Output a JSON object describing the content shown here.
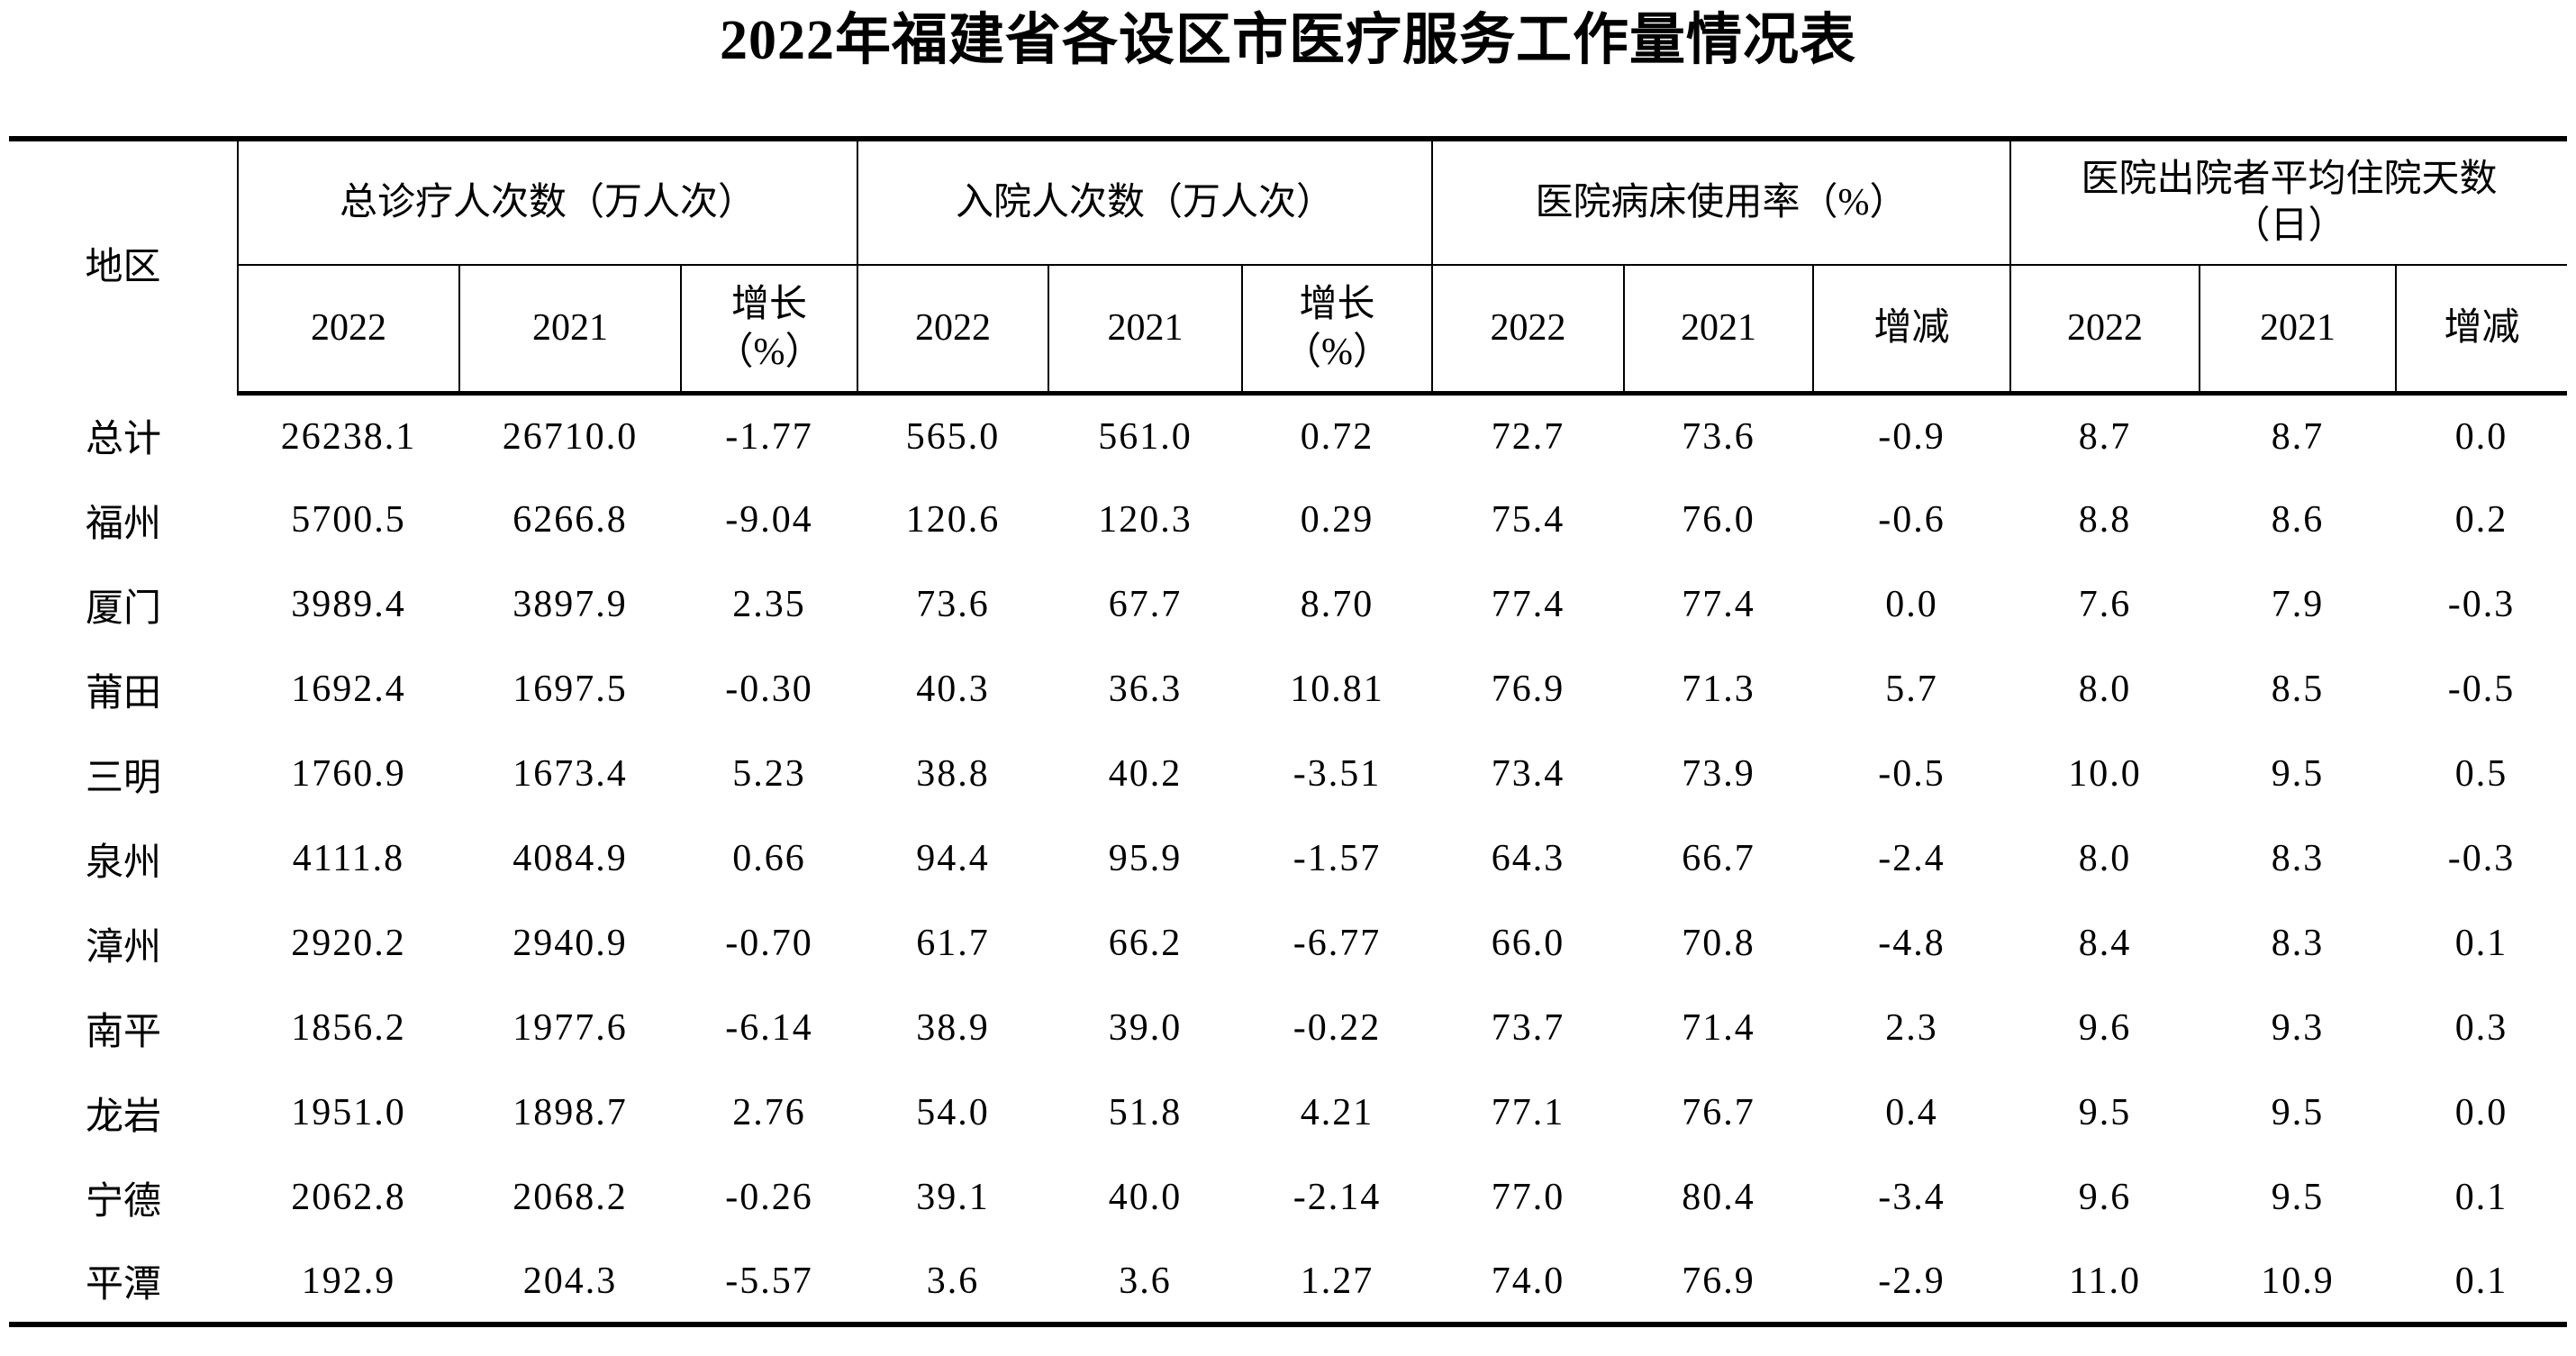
{
  "title": "2022年福建省各设区市医疗服务工作量情况表",
  "table": {
    "region_header": "地区",
    "groups": [
      {
        "label": "总诊疗人次数（万人次）",
        "sub": [
          "2022",
          "2021",
          "增长\n（%）"
        ]
      },
      {
        "label": "入院人次数（万人次）",
        "sub": [
          "2022",
          "2021",
          "增长\n（%）"
        ]
      },
      {
        "label": "医院病床使用率（%）",
        "sub": [
          "2022",
          "2021",
          "增减"
        ]
      },
      {
        "label": "医院出院者平均住院天数\n（日）",
        "sub": [
          "2022",
          "2021",
          "增减"
        ]
      }
    ],
    "rows": [
      {
        "region": "总计",
        "values": [
          "26238.1",
          "26710.0",
          "-1.77",
          "565.0",
          "561.0",
          "0.72",
          "72.7",
          "73.6",
          "-0.9",
          "8.7",
          "8.7",
          "0.0"
        ]
      },
      {
        "region": "福州",
        "values": [
          "5700.5",
          "6266.8",
          "-9.04",
          "120.6",
          "120.3",
          "0.29",
          "75.4",
          "76.0",
          "-0.6",
          "8.8",
          "8.6",
          "0.2"
        ]
      },
      {
        "region": "厦门",
        "values": [
          "3989.4",
          "3897.9",
          "2.35",
          "73.6",
          "67.7",
          "8.70",
          "77.4",
          "77.4",
          "0.0",
          "7.6",
          "7.9",
          "-0.3"
        ]
      },
      {
        "region": "莆田",
        "values": [
          "1692.4",
          "1697.5",
          "-0.30",
          "40.3",
          "36.3",
          "10.81",
          "76.9",
          "71.3",
          "5.7",
          "8.0",
          "8.5",
          "-0.5"
        ]
      },
      {
        "region": "三明",
        "values": [
          "1760.9",
          "1673.4",
          "5.23",
          "38.8",
          "40.2",
          "-3.51",
          "73.4",
          "73.9",
          "-0.5",
          "10.0",
          "9.5",
          "0.5"
        ]
      },
      {
        "region": "泉州",
        "values": [
          "4111.8",
          "4084.9",
          "0.66",
          "94.4",
          "95.9",
          "-1.57",
          "64.3",
          "66.7",
          "-2.4",
          "8.0",
          "8.3",
          "-0.3"
        ]
      },
      {
        "region": "漳州",
        "values": [
          "2920.2",
          "2940.9",
          "-0.70",
          "61.7",
          "66.2",
          "-6.77",
          "66.0",
          "70.8",
          "-4.8",
          "8.4",
          "8.3",
          "0.1"
        ]
      },
      {
        "region": "南平",
        "values": [
          "1856.2",
          "1977.6",
          "-6.14",
          "38.9",
          "39.0",
          "-0.22",
          "73.7",
          "71.4",
          "2.3",
          "9.6",
          "9.3",
          "0.3"
        ]
      },
      {
        "region": "龙岩",
        "values": [
          "1951.0",
          "1898.7",
          "2.76",
          "54.0",
          "51.8",
          "4.21",
          "77.1",
          "76.7",
          "0.4",
          "9.5",
          "9.5",
          "0.0"
        ]
      },
      {
        "region": "宁德",
        "values": [
          "2062.8",
          "2068.2",
          "-0.26",
          "39.1",
          "40.0",
          "-2.14",
          "77.0",
          "80.4",
          "-3.4",
          "9.6",
          "9.5",
          "0.1"
        ]
      },
      {
        "region": "平潭",
        "values": [
          "192.9",
          "204.3",
          "-5.57",
          "3.6",
          "3.6",
          "1.27",
          "74.0",
          "76.9",
          "-2.9",
          "11.0",
          "10.9",
          "0.1"
        ]
      }
    ]
  }
}
